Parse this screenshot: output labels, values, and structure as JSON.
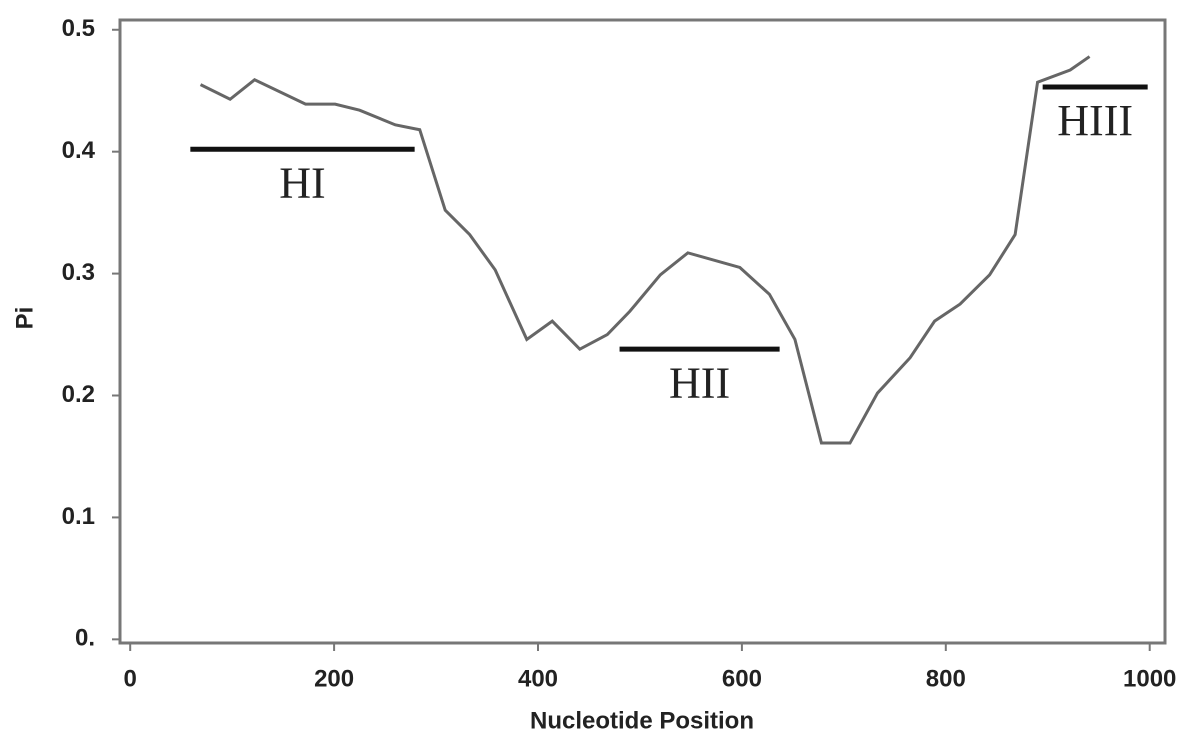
{
  "chart_data": {
    "type": "line",
    "x_label": "Nucleotide Position",
    "y_label": "Pi",
    "x": [
      69,
      98,
      122,
      172,
      201,
      225,
      260,
      284,
      309,
      333,
      358,
      389,
      414,
      441,
      468,
      490,
      520,
      547,
      598,
      627,
      652,
      678,
      706,
      733,
      765,
      789,
      814,
      843,
      868,
      890,
      922,
      941
    ],
    "series": [
      {
        "name": "Pi",
        "color": "#666666",
        "values": [
          0.455,
          0.443,
          0.459,
          0.439,
          0.439,
          0.434,
          0.422,
          0.418,
          0.352,
          0.332,
          0.303,
          0.246,
          0.261,
          0.238,
          0.25,
          0.269,
          0.299,
          0.317,
          0.305,
          0.283,
          0.246,
          0.161,
          0.161,
          0.202,
          0.231,
          0.261,
          0.275,
          0.299,
          0.332,
          0.457,
          0.467,
          0.478
        ]
      }
    ],
    "xlim": [
      -10,
      1015
    ],
    "ylim": [
      -0.003,
      0.508
    ],
    "xticks": [
      0,
      200,
      400,
      600,
      800,
      1000
    ],
    "yticks": [
      {
        "value": 0,
        "label": "0."
      },
      0.1,
      0.2,
      0.3,
      0.4,
      0.5
    ],
    "annotations": [
      {
        "label": "HI",
        "x": [
          59,
          279
        ],
        "y": 0.402
      },
      {
        "label": "HII",
        "x": [
          480,
          637
        ],
        "y": 0.238
      },
      {
        "label": "HIII",
        "x": [
          895,
          998
        ],
        "y": 0.453
      }
    ]
  }
}
